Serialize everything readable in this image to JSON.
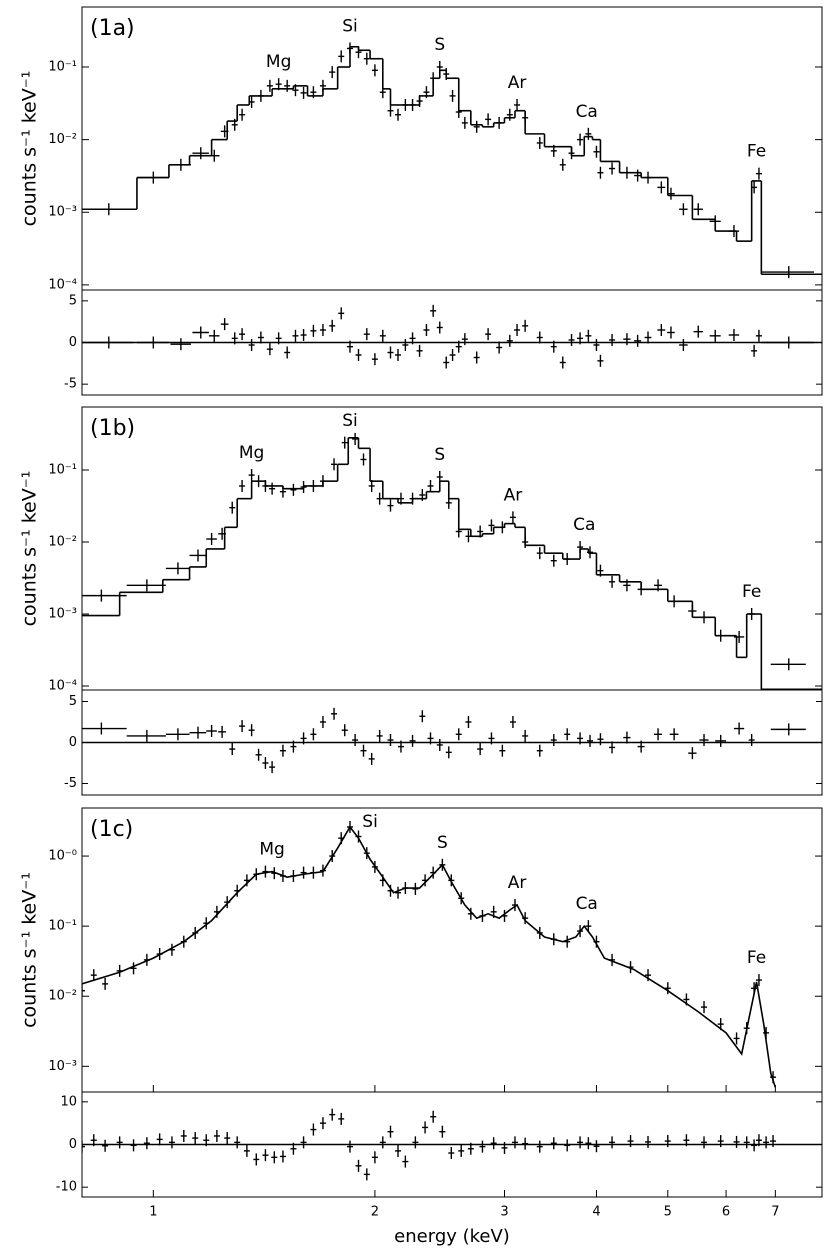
{
  "chart_data": [
    {
      "type": "spectrum",
      "label": "(1a)",
      "ylabel": "counts s⁻¹  keV⁻¹",
      "log_x": true,
      "log_y": true,
      "xlim": [
        0.8,
        8.1
      ],
      "ylim": [
        8.5e-05,
        0.67
      ],
      "yticks": [
        {
          "value": 0.0001,
          "label": "10⁻⁴"
        },
        {
          "value": 0.001,
          "label": "10⁻³"
        },
        {
          "value": 0.01,
          "label": "10⁻²"
        },
        {
          "value": 0.1,
          "label": "10⁻¹"
        }
      ],
      "annotations": [
        {
          "text": "Mg",
          "x": 1.48
        },
        {
          "text": "Si",
          "x": 1.85
        },
        {
          "text": "S",
          "x": 2.45
        },
        {
          "text": "Ar",
          "x": 3.12
        },
        {
          "text": "Ca",
          "x": 3.88
        },
        {
          "text": "Fe",
          "x": 6.6
        }
      ],
      "model": {
        "color": "#000000",
        "steps": true,
        "x": [
          0.8,
          0.95,
          1.05,
          1.12,
          1.2,
          1.26,
          1.3,
          1.35,
          1.45,
          1.55,
          1.62,
          1.7,
          1.78,
          1.85,
          1.9,
          1.97,
          2.05,
          2.1,
          2.2,
          2.3,
          2.4,
          2.45,
          2.5,
          2.6,
          2.7,
          2.8,
          2.9,
          3.0,
          3.1,
          3.2,
          3.4,
          3.7,
          3.85,
          3.95,
          4.05,
          4.3,
          4.6,
          5.0,
          5.4,
          5.8,
          6.2,
          6.5,
          6.7
        ],
        "values": [
          0.0011,
          0.003,
          0.0045,
          0.006,
          0.01,
          0.018,
          0.03,
          0.04,
          0.05,
          0.055,
          0.04,
          0.05,
          0.1,
          0.19,
          0.17,
          0.13,
          0.05,
          0.03,
          0.03,
          0.04,
          0.07,
          0.09,
          0.07,
          0.025,
          0.016,
          0.015,
          0.017,
          0.02,
          0.025,
          0.012,
          0.008,
          0.006,
          0.011,
          0.01,
          0.005,
          0.0035,
          0.003,
          0.0017,
          0.0008,
          0.00055,
          0.0004,
          0.0027,
          0.00014
        ]
      },
      "data": {
        "color": "#000000",
        "x": [
          0.87,
          1.0,
          1.09,
          1.16,
          1.21,
          1.25,
          1.29,
          1.32,
          1.36,
          1.4,
          1.44,
          1.48,
          1.52,
          1.56,
          1.6,
          1.65,
          1.7,
          1.75,
          1.8,
          1.85,
          1.9,
          1.95,
          2.0,
          2.05,
          2.1,
          2.15,
          2.2,
          2.25,
          2.3,
          2.35,
          2.4,
          2.45,
          2.5,
          2.55,
          2.6,
          2.65,
          2.75,
          2.85,
          2.95,
          3.05,
          3.12,
          3.2,
          3.35,
          3.5,
          3.6,
          3.7,
          3.8,
          3.9,
          4.0,
          4.05,
          4.2,
          4.4,
          4.55,
          4.7,
          4.9,
          5.05,
          5.25,
          5.5,
          5.8,
          6.15,
          6.55,
          6.65,
          7.3
        ],
        "x_err": [
          0.07,
          0.05,
          0.035,
          0.03,
          0.02,
          0.015,
          0.01,
          0.01,
          0.01,
          0.01,
          0.01,
          0.01,
          0.01,
          0.01,
          0.01,
          0.01,
          0.01,
          0.01,
          0.01,
          0.01,
          0.01,
          0.01,
          0.01,
          0.01,
          0.01,
          0.01,
          0.01,
          0.01,
          0.01,
          0.01,
          0.01,
          0.01,
          0.01,
          0.01,
          0.01,
          0.01,
          0.01,
          0.01,
          0.01,
          0.02,
          0.02,
          0.02,
          0.03,
          0.03,
          0.03,
          0.03,
          0.03,
          0.03,
          0.03,
          0.03,
          0.04,
          0.05,
          0.05,
          0.05,
          0.06,
          0.06,
          0.07,
          0.08,
          0.1,
          0.1,
          0.05,
          0.05,
          0.6
        ],
        "values": [
          0.0011,
          0.003,
          0.0045,
          0.0065,
          0.006,
          0.013,
          0.016,
          0.022,
          0.033,
          0.04,
          0.055,
          0.058,
          0.055,
          0.048,
          0.044,
          0.045,
          0.055,
          0.085,
          0.14,
          0.18,
          0.16,
          0.13,
          0.09,
          0.045,
          0.025,
          0.022,
          0.03,
          0.03,
          0.034,
          0.045,
          0.07,
          0.1,
          0.08,
          0.04,
          0.024,
          0.017,
          0.015,
          0.019,
          0.017,
          0.022,
          0.03,
          0.02,
          0.009,
          0.007,
          0.0045,
          0.0065,
          0.01,
          0.012,
          0.0068,
          0.0035,
          0.004,
          0.0035,
          0.0032,
          0.003,
          0.0022,
          0.0018,
          0.0011,
          0.0011,
          0.00075,
          0.00055,
          0.0022,
          0.0034,
          0.00015
        ]
      },
      "residuals": {
        "ylim": [
          -6.3,
          6.3
        ],
        "yticks": [
          -5,
          0,
          5
        ],
        "values": [
          0,
          0,
          -0.2,
          1.2,
          0.8,
          2.2,
          0.5,
          1.0,
          -0.3,
          0.6,
          -0.8,
          0.5,
          -1.2,
          0.8,
          0.9,
          1.4,
          1.5,
          2.0,
          3.5,
          -0.5,
          -1.5,
          1.0,
          -2.0,
          0.8,
          -1.2,
          -1.5,
          -0.3,
          0.5,
          -1.0,
          1.5,
          3.8,
          1.8,
          -2.4,
          -1.5,
          -0.5,
          0.4,
          -1.8,
          1.0,
          -0.6,
          0.2,
          1.5,
          2.0,
          0.6,
          -0.5,
          -2.4,
          0.3,
          0.5,
          0.8,
          -0.3,
          -2.2,
          0.3,
          0.4,
          0.2,
          0.6,
          1.5,
          1.2,
          -0.3,
          1.3,
          0.8,
          0.9,
          -1.0,
          0.8,
          0
        ]
      }
    },
    {
      "type": "spectrum",
      "label": "(1b)",
      "ylabel": "counts s⁻¹  keV⁻¹",
      "log_x": true,
      "log_y": true,
      "xlim": [
        0.8,
        8.1
      ],
      "ylim": [
        8.8e-05,
        0.75
      ],
      "yticks": [
        {
          "value": 0.0001,
          "label": "10⁻⁴"
        },
        {
          "value": 0.001,
          "label": "10⁻³"
        },
        {
          "value": 0.01,
          "label": "10⁻²"
        },
        {
          "value": 0.1,
          "label": "10⁻¹"
        }
      ],
      "annotations": [
        {
          "text": "Mg",
          "x": 1.36
        },
        {
          "text": "Si",
          "x": 1.85
        },
        {
          "text": "S",
          "x": 2.45
        },
        {
          "text": "Ar",
          "x": 3.08
        },
        {
          "text": "Ca",
          "x": 3.85
        },
        {
          "text": "Fe",
          "x": 6.5
        }
      ],
      "model": {
        "color": "#000000",
        "steps": true,
        "x": [
          0.8,
          0.9,
          1.03,
          1.12,
          1.18,
          1.25,
          1.3,
          1.36,
          1.42,
          1.5,
          1.6,
          1.7,
          1.78,
          1.84,
          1.9,
          1.97,
          2.05,
          2.15,
          2.25,
          2.35,
          2.45,
          2.52,
          2.6,
          2.7,
          2.8,
          2.9,
          3.0,
          3.1,
          3.2,
          3.4,
          3.6,
          3.8,
          3.9,
          4.0,
          4.3,
          4.6,
          5.0,
          5.4,
          5.8,
          6.2,
          6.4,
          6.7
        ],
        "values": [
          0.00095,
          0.002,
          0.003,
          0.0045,
          0.008,
          0.016,
          0.04,
          0.07,
          0.06,
          0.055,
          0.06,
          0.07,
          0.12,
          0.28,
          0.2,
          0.07,
          0.04,
          0.035,
          0.04,
          0.05,
          0.07,
          0.04,
          0.015,
          0.012,
          0.013,
          0.016,
          0.018,
          0.016,
          0.009,
          0.007,
          0.0058,
          0.008,
          0.007,
          0.0035,
          0.0028,
          0.0022,
          0.0015,
          0.0009,
          0.0005,
          0.00025,
          0.001,
          9e-05
        ]
      },
      "data": {
        "color": "#000000",
        "x": [
          0.85,
          0.98,
          1.08,
          1.15,
          1.2,
          1.24,
          1.28,
          1.32,
          1.36,
          1.39,
          1.42,
          1.45,
          1.5,
          1.55,
          1.6,
          1.65,
          1.7,
          1.76,
          1.82,
          1.88,
          1.93,
          1.98,
          2.03,
          2.1,
          2.17,
          2.25,
          2.32,
          2.38,
          2.45,
          2.52,
          2.6,
          2.68,
          2.78,
          2.88,
          2.98,
          3.08,
          3.2,
          3.35,
          3.5,
          3.65,
          3.8,
          3.92,
          4.05,
          4.2,
          4.4,
          4.6,
          4.85,
          5.1,
          5.4,
          5.6,
          5.9,
          6.25,
          6.5,
          7.3
        ],
        "x_err": [
          0.07,
          0.06,
          0.04,
          0.03,
          0.02,
          0.015,
          0.01,
          0.01,
          0.01,
          0.01,
          0.01,
          0.01,
          0.01,
          0.01,
          0.01,
          0.01,
          0.01,
          0.01,
          0.01,
          0.01,
          0.01,
          0.01,
          0.01,
          0.01,
          0.01,
          0.01,
          0.01,
          0.01,
          0.01,
          0.01,
          0.01,
          0.01,
          0.01,
          0.01,
          0.01,
          0.02,
          0.02,
          0.02,
          0.03,
          0.03,
          0.03,
          0.03,
          0.03,
          0.04,
          0.05,
          0.05,
          0.06,
          0.07,
          0.07,
          0.08,
          0.1,
          0.1,
          0.05,
          0.4
        ],
        "values": [
          0.0018,
          0.0025,
          0.0043,
          0.0065,
          0.011,
          0.013,
          0.03,
          0.06,
          0.085,
          0.07,
          0.06,
          0.055,
          0.05,
          0.053,
          0.058,
          0.06,
          0.07,
          0.12,
          0.24,
          0.27,
          0.14,
          0.06,
          0.04,
          0.032,
          0.04,
          0.04,
          0.045,
          0.06,
          0.08,
          0.035,
          0.014,
          0.012,
          0.014,
          0.017,
          0.016,
          0.022,
          0.01,
          0.007,
          0.0055,
          0.0058,
          0.0085,
          0.0072,
          0.004,
          0.0028,
          0.0025,
          0.0022,
          0.0025,
          0.0015,
          0.0011,
          0.0009,
          0.0005,
          0.00048,
          0.001,
          0.0002
        ]
      },
      "residuals": {
        "ylim": [
          -6.4,
          6.4
        ],
        "yticks": [
          -5,
          0,
          5
        ],
        "values": [
          1.7,
          0.8,
          1.0,
          1.2,
          1.4,
          1.3,
          -0.8,
          2.0,
          1.5,
          -1.5,
          -2.5,
          -3.0,
          -1.0,
          -0.5,
          0.5,
          1.0,
          2.5,
          3.5,
          1.5,
          0.3,
          -1.0,
          -2.0,
          0.8,
          0.3,
          -0.5,
          0.2,
          3.2,
          0.5,
          -0.3,
          -1.2,
          1.0,
          2.5,
          -0.8,
          0.5,
          -1.0,
          2.5,
          0.8,
          -1.0,
          0.3,
          1.0,
          0.5,
          0.2,
          0.4,
          -0.6,
          0.6,
          -0.5,
          1.0,
          1.0,
          -1.3,
          0.3,
          0.2,
          1.7,
          0.3,
          1.6
        ]
      }
    },
    {
      "type": "spectrum",
      "label": "(1c)",
      "ylabel": "counts s⁻¹  keV⁻¹",
      "xlabel": "energy (keV)",
      "log_x": true,
      "log_y": true,
      "xlim": [
        0.8,
        8.1
      ],
      "ylim": [
        0.00043,
        4.85
      ],
      "xticks": [
        1,
        2,
        3,
        4,
        5,
        6,
        7
      ],
      "yticks": [
        {
          "value": 0.001,
          "label": "10⁻³"
        },
        {
          "value": 0.01,
          "label": "10⁻²"
        },
        {
          "value": 0.1,
          "label": "10⁻¹"
        },
        {
          "value": 1,
          "label": "10⁻⁰"
        }
      ],
      "annotations": [
        {
          "text": "Mg",
          "x": 1.45
        },
        {
          "text": "Si",
          "x": 1.97
        },
        {
          "text": "S",
          "x": 2.47
        },
        {
          "text": "Ar",
          "x": 3.12
        },
        {
          "text": "Ca",
          "x": 3.88
        },
        {
          "text": "Fe",
          "x": 6.6
        }
      ],
      "model": {
        "color": "#000000",
        "steps": false,
        "x": [
          0.8,
          0.9,
          1.0,
          1.1,
          1.2,
          1.3,
          1.38,
          1.45,
          1.52,
          1.6,
          1.7,
          1.78,
          1.85,
          1.9,
          1.97,
          2.05,
          2.12,
          2.2,
          2.3,
          2.4,
          2.47,
          2.55,
          2.65,
          2.75,
          2.85,
          2.95,
          3.05,
          3.12,
          3.2,
          3.4,
          3.6,
          3.75,
          3.85,
          3.95,
          4.1,
          4.5,
          5.0,
          5.5,
          6.0,
          6.3,
          6.45,
          6.6,
          6.75,
          6.9,
          7.0
        ],
        "values": [
          0.015,
          0.022,
          0.035,
          0.06,
          0.12,
          0.3,
          0.55,
          0.6,
          0.5,
          0.55,
          0.6,
          1.3,
          2.6,
          1.8,
          0.9,
          0.5,
          0.3,
          0.35,
          0.35,
          0.55,
          0.75,
          0.4,
          0.2,
          0.13,
          0.15,
          0.13,
          0.17,
          0.2,
          0.12,
          0.07,
          0.06,
          0.07,
          0.1,
          0.07,
          0.035,
          0.024,
          0.012,
          0.006,
          0.003,
          0.0015,
          0.005,
          0.016,
          0.004,
          0.0008,
          0.0005
        ]
      },
      "data": {
        "color": "#000000",
        "x": [
          0.8,
          0.83,
          0.86,
          0.9,
          0.94,
          0.98,
          1.02,
          1.06,
          1.1,
          1.14,
          1.18,
          1.22,
          1.26,
          1.3,
          1.34,
          1.38,
          1.42,
          1.46,
          1.5,
          1.55,
          1.6,
          1.65,
          1.7,
          1.75,
          1.8,
          1.85,
          1.9,
          1.95,
          2.0,
          2.05,
          2.1,
          2.15,
          2.2,
          2.27,
          2.34,
          2.4,
          2.47,
          2.54,
          2.62,
          2.7,
          2.8,
          2.9,
          3.0,
          3.1,
          3.2,
          3.35,
          3.5,
          3.65,
          3.8,
          3.9,
          4.0,
          4.2,
          4.45,
          4.7,
          5.0,
          5.3,
          5.6,
          5.9,
          6.2,
          6.4,
          6.55,
          6.65,
          6.8,
          6.95
        ],
        "values": [
          0.012,
          0.02,
          0.015,
          0.023,
          0.025,
          0.033,
          0.04,
          0.046,
          0.06,
          0.08,
          0.11,
          0.16,
          0.22,
          0.32,
          0.45,
          0.55,
          0.6,
          0.57,
          0.52,
          0.52,
          0.58,
          0.58,
          0.62,
          1.0,
          1.8,
          2.6,
          1.9,
          1.1,
          0.7,
          0.45,
          0.32,
          0.3,
          0.35,
          0.34,
          0.45,
          0.58,
          0.75,
          0.45,
          0.25,
          0.15,
          0.14,
          0.16,
          0.14,
          0.2,
          0.13,
          0.08,
          0.065,
          0.06,
          0.085,
          0.1,
          0.06,
          0.033,
          0.026,
          0.02,
          0.013,
          0.009,
          0.007,
          0.004,
          0.0025,
          0.0035,
          0.013,
          0.017,
          0.003,
          0.0007
        ]
      },
      "residuals": {
        "ylim": [
          -12.3,
          12.3
        ],
        "yticks": [
          -10,
          0,
          10
        ],
        "values": [
          -0.5,
          1.0,
          -0.3,
          0.5,
          -0.2,
          0.3,
          1.2,
          0.5,
          2.0,
          1.5,
          1.0,
          2.0,
          1.5,
          0.5,
          -1.5,
          -3.5,
          -2.5,
          -3.0,
          -2.8,
          -1.0,
          0.5,
          3.5,
          5.0,
          7.0,
          6.0,
          -0.5,
          -5.0,
          -7.0,
          -3.0,
          0.5,
          3.0,
          -1.5,
          -4.0,
          0.5,
          4.0,
          6.5,
          3.0,
          -2.0,
          -1.5,
          -1.0,
          -0.5,
          0.3,
          -0.8,
          0.5,
          0.2,
          -0.5,
          0.3,
          -0.2,
          0.5,
          0.3,
          -0.4,
          0.5,
          0.8,
          0.6,
          0.8,
          1.0,
          0.5,
          0.8,
          0.6,
          0.5,
          -0.2,
          1.0,
          0.5,
          0.8
        ]
      }
    }
  ]
}
